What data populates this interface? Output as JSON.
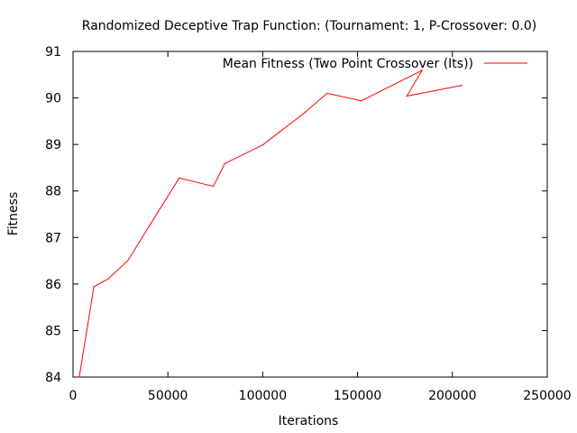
{
  "chart_data": {
    "type": "line",
    "title": "Randomized Deceptive Trap Function:  (Tournament: 1, P-Crossover: 0.0)",
    "xlabel": "Iterations",
    "ylabel": "Fitness",
    "xlim": [
      0,
      250000
    ],
    "ylim": [
      84,
      91
    ],
    "xticks": [
      0,
      50000,
      100000,
      150000,
      200000,
      250000
    ],
    "yticks": [
      84,
      85,
      86,
      87,
      88,
      89,
      90,
      91
    ],
    "grid": false,
    "legend_position": "top-right",
    "series": [
      {
        "name": "Mean Fitness (Two Point Crossover (Its))",
        "color": "#ff0000",
        "x": [
          3300,
          11000,
          18500,
          29000,
          41000,
          56000,
          74000,
          80000,
          100000,
          122000,
          134000,
          152000,
          184000,
          176000,
          205000
        ],
        "y": [
          84.0,
          85.94,
          86.11,
          86.51,
          87.3,
          88.28,
          88.1,
          88.59,
          88.99,
          89.68,
          90.1,
          89.94,
          90.59,
          90.04,
          90.27
        ]
      }
    ]
  }
}
